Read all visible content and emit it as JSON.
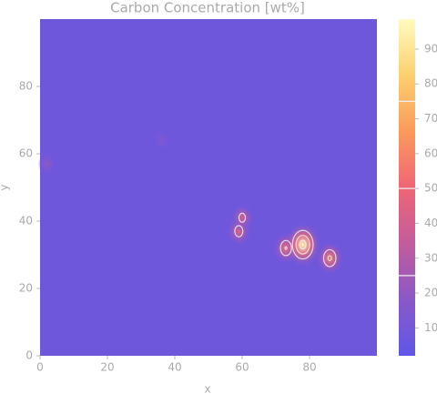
{
  "chart_data": {
    "type": "heatmap",
    "title": "Carbon Concentration [wt%]",
    "xlabel": "x",
    "ylabel": "y",
    "xlim": [
      0,
      100
    ],
    "ylim": [
      0,
      100
    ],
    "xticks": [
      0,
      20,
      40,
      60,
      80
    ],
    "yticks": [
      0,
      20,
      40,
      60,
      80
    ],
    "background_value": 8,
    "x": [
      2,
      36,
      59,
      60,
      73,
      78,
      86
    ],
    "y": [
      57,
      64,
      37,
      41,
      32,
      33,
      29
    ],
    "values": [
      20,
      15,
      45,
      40,
      55,
      97,
      60
    ],
    "colormap": [
      "#5f57e8",
      "#8a58c8",
      "#c35c9c",
      "#ef6675",
      "#fb9a5c",
      "#fdd06e",
      "#fffbc0"
    ],
    "colorbar_lim": [
      2,
      98.6
    ],
    "colorbar_ticks": [
      10,
      20,
      30,
      40,
      50,
      60,
      70,
      80,
      90
    ],
    "contour_levels": [
      25,
      50,
      75
    ],
    "contour_color": "#eeeeee"
  }
}
